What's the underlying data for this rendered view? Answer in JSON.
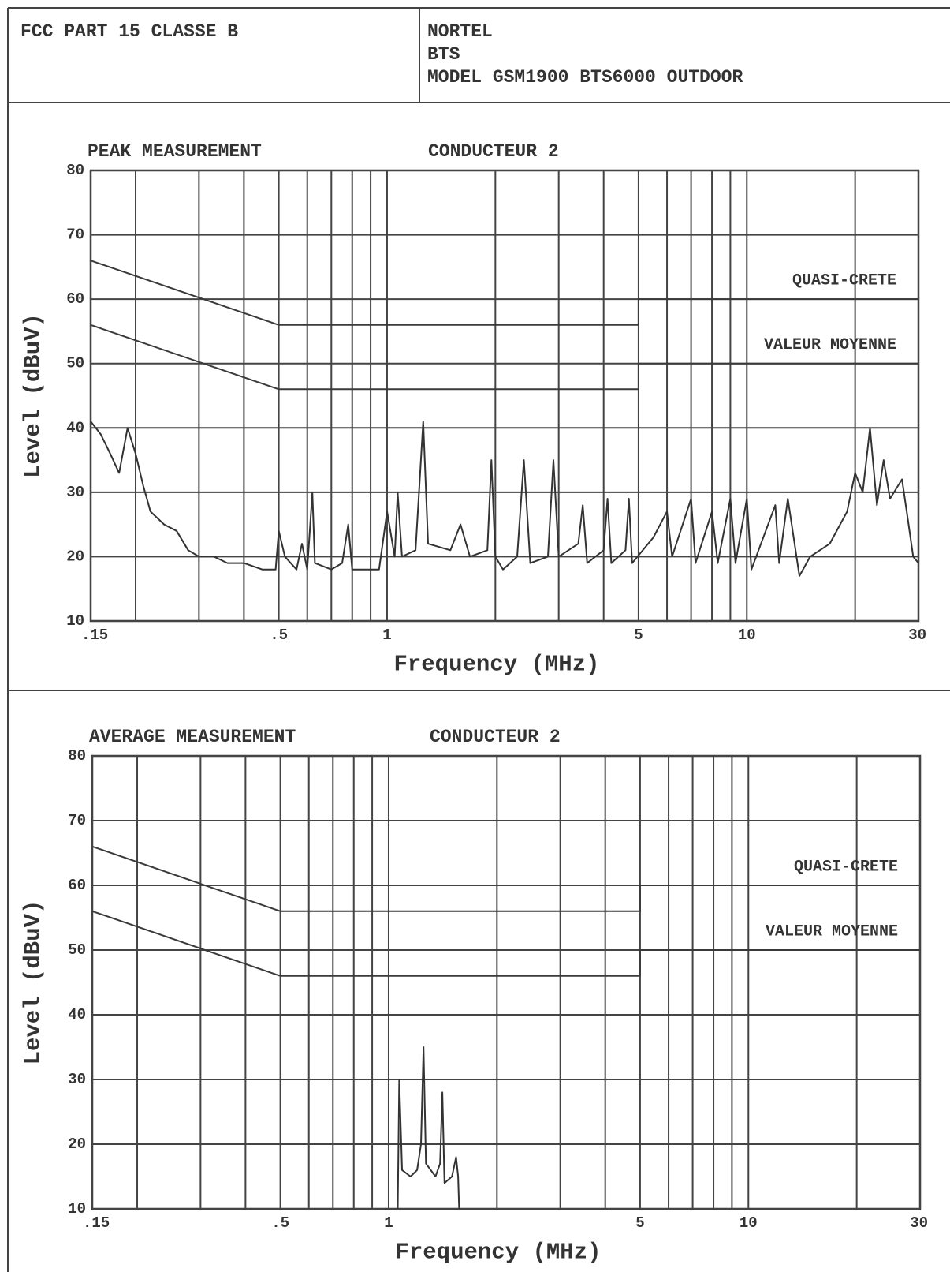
{
  "header": {
    "left": "FCC PART 15 CLASSE B",
    "right": [
      "NORTEL",
      "BTS",
      "MODEL GSM1900 BTS6000 OUTDOOR"
    ]
  },
  "chart_data": [
    {
      "type": "line",
      "title": "PEAK MEASUREMENT",
      "subtitle": "CONDUCTEUR 2",
      "x_label": "Frequency (MHz)",
      "y_label": "Level (dBuV)",
      "xscale": "log",
      "xlim": [
        0.15,
        30
      ],
      "ylim": [
        10,
        80
      ],
      "xticks": [
        {
          "value": 0.15,
          "label": ".15"
        },
        {
          "value": 0.5,
          "label": ".5"
        },
        1,
        5,
        10,
        30
      ],
      "xgrid": [
        0.2,
        0.3,
        0.4,
        0.6,
        0.7,
        0.8,
        0.9,
        2,
        3,
        4,
        6,
        7,
        8,
        9,
        20
      ],
      "yticks": [
        10,
        20,
        30,
        40,
        50,
        60,
        70,
        80
      ],
      "grid": true,
      "series": [
        {
          "name": "QUASI-CRETE",
          "color": "#3a3a3a",
          "x": [
            0.15,
            0.5,
            5,
            5,
            30
          ],
          "values": [
            66,
            56,
            56,
            60,
            60
          ]
        },
        {
          "name": "VALEUR MOYENNE",
          "color": "#3a3a3a",
          "x": [
            0.15,
            0.5,
            5,
            5,
            30
          ],
          "values": [
            56,
            46,
            46,
            50,
            50
          ]
        },
        {
          "color": "#333333",
          "x": [
            0.15,
            0.16,
            0.17,
            0.18,
            0.19,
            0.2,
            0.21,
            0.22,
            0.24,
            0.26,
            0.28,
            0.3,
            0.33,
            0.36,
            0.4,
            0.45,
            0.49,
            0.5,
            0.52,
            0.56,
            0.58,
            0.6,
            0.62,
            0.63,
            0.7,
            0.75,
            0.78,
            0.8,
            0.85,
            0.9,
            0.95,
            1.0,
            1.05,
            1.07,
            1.1,
            1.2,
            1.26,
            1.3,
            1.5,
            1.6,
            1.7,
            1.9,
            1.95,
            2.0,
            2.1,
            2.3,
            2.4,
            2.5,
            2.8,
            2.9,
            3.0,
            3.4,
            3.5,
            3.6,
            4.0,
            4.1,
            4.2,
            4.6,
            4.7,
            4.8,
            5.5,
            6.0,
            6.2,
            7.0,
            7.2,
            8.0,
            8.3,
            9.0,
            9.3,
            10.0,
            10.3,
            12,
            12.3,
            13,
            14,
            15,
            17,
            19,
            20,
            21,
            22,
            23,
            24,
            25,
            27,
            28,
            29,
            30
          ],
          "values": [
            41,
            39,
            36,
            33,
            40,
            36,
            31,
            27,
            25,
            24,
            21,
            20,
            20,
            19,
            19,
            18,
            18,
            24,
            20,
            18,
            22,
            18,
            30,
            19,
            18,
            19,
            25,
            18,
            18,
            18,
            18,
            27,
            20,
            30,
            20,
            21,
            41,
            22,
            21,
            25,
            20,
            21,
            35,
            20,
            18,
            20,
            35,
            19,
            20,
            35,
            20,
            22,
            28,
            19,
            21,
            29,
            19,
            21,
            29,
            19,
            23,
            27,
            20,
            29,
            19,
            27,
            19,
            29,
            19,
            29,
            18,
            28,
            19,
            29,
            17,
            20,
            22,
            27,
            33,
            30,
            40,
            28,
            35,
            29,
            32,
            26,
            20,
            19
          ]
        }
      ]
    },
    {
      "type": "line",
      "title": "AVERAGE MEASUREMENT",
      "subtitle": "CONDUCTEUR 2",
      "x_label": "Frequency (MHz)",
      "y_label": "Level (dBuV)",
      "xscale": "log",
      "xlim": [
        0.15,
        30
      ],
      "ylim": [
        10,
        80
      ],
      "xticks": [
        {
          "value": 0.15,
          "label": ".15"
        },
        {
          "value": 0.5,
          "label": ".5"
        },
        1,
        5,
        10,
        30
      ],
      "xgrid": [
        0.2,
        0.3,
        0.4,
        0.6,
        0.7,
        0.8,
        0.9,
        2,
        3,
        4,
        6,
        7,
        8,
        9,
        20
      ],
      "yticks": [
        10,
        20,
        30,
        40,
        50,
        60,
        70,
        80
      ],
      "grid": true,
      "series": [
        {
          "name": "QUASI-CRETE",
          "color": "#3a3a3a",
          "x": [
            0.15,
            0.5,
            5,
            5,
            30
          ],
          "values": [
            66,
            56,
            56,
            60,
            60
          ]
        },
        {
          "name": "VALEUR MOYENNE",
          "color": "#3a3a3a",
          "x": [
            0.15,
            0.5,
            5,
            5,
            30
          ],
          "values": [
            56,
            46,
            46,
            50,
            50
          ]
        },
        {
          "color": "#333333",
          "x": [
            1.06,
            1.07,
            1.09,
            1.15,
            1.2,
            1.23,
            1.25,
            1.27,
            1.35,
            1.39,
            1.41,
            1.43,
            1.5,
            1.54,
            1.56,
            1.57
          ],
          "values": [
            10,
            30,
            16,
            15,
            16,
            20,
            35,
            17,
            15,
            17,
            28,
            14,
            15,
            18,
            15,
            10
          ]
        }
      ]
    }
  ]
}
